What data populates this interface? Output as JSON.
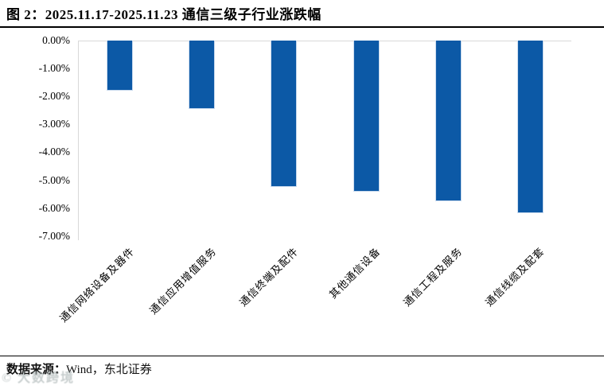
{
  "figure": {
    "title": "图 2：2025.11.17-2025.11.23 通信三级子行业涨跌幅"
  },
  "footer": {
    "source_label": "数据来源：",
    "source_value": "Wind，东北证券",
    "watermark": "© 大数跨境"
  },
  "colors": {
    "bar_fill": "#0c59a6",
    "bar_halo": "#c9daee",
    "gridline": "#d9d9d9",
    "rule": "#000000"
  },
  "chart_data": {
    "type": "bar",
    "title": "2025.11.17-2025.11.23 通信三级子行业涨跌幅",
    "categories": [
      "通信网络设备及器件",
      "通信应用增值服务",
      "通信终端及配件",
      "其他通信设备",
      "通信工程及服务",
      "通信线缆及配套"
    ],
    "values": [
      -1.79,
      -2.46,
      -5.23,
      -5.4,
      -5.76,
      -6.18
    ],
    "unit": "%",
    "xlabel": "",
    "ylabel": "",
    "ylim": [
      -7,
      0
    ],
    "ytick_labels": [
      "0.00%",
      "-1.00%",
      "-2.00%",
      "-3.00%",
      "-4.00%",
      "-5.00%",
      "-6.00%",
      "-7.00%"
    ],
    "grid": "zero-line only",
    "legend": "none",
    "bar_orientation": "vertical-negative"
  }
}
